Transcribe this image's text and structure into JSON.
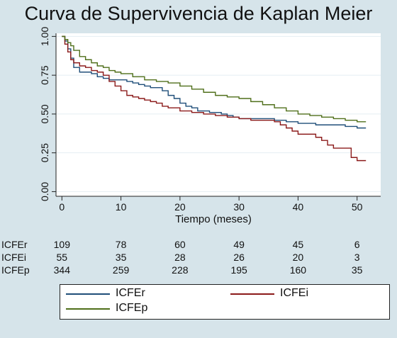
{
  "chart_data": {
    "type": "line",
    "title": "Curva de Supervivencia de Kaplan Meier",
    "xlabel": "Tiempo (meses)",
    "ylabel": "",
    "xlim": [
      -1,
      54
    ],
    "ylim": [
      -0.03,
      1.02
    ],
    "xticks": [
      0,
      10,
      20,
      30,
      40,
      50
    ],
    "yticks": [
      "0.00",
      "0.25",
      "0.50",
      "0.75",
      "1.00"
    ],
    "grid": true,
    "series": [
      {
        "name": "ICFEr",
        "color": "#1f4e79",
        "x": [
          0,
          0.5,
          1,
          1.5,
          2,
          3,
          4,
          5,
          6,
          7,
          8,
          9,
          10,
          11,
          12,
          13,
          14,
          15,
          16,
          17,
          18,
          19,
          20,
          21,
          22,
          23,
          24,
          25,
          26,
          27,
          28,
          29,
          30,
          33,
          36,
          38,
          40,
          43,
          46,
          48,
          50,
          51.5
        ],
        "y": [
          1.0,
          0.97,
          0.92,
          0.86,
          0.8,
          0.77,
          0.77,
          0.76,
          0.74,
          0.73,
          0.72,
          0.72,
          0.72,
          0.71,
          0.7,
          0.69,
          0.68,
          0.67,
          0.67,
          0.65,
          0.62,
          0.6,
          0.57,
          0.55,
          0.54,
          0.52,
          0.52,
          0.51,
          0.51,
          0.5,
          0.49,
          0.48,
          0.47,
          0.47,
          0.46,
          0.45,
          0.44,
          0.43,
          0.43,
          0.42,
          0.41,
          0.41
        ]
      },
      {
        "name": "ICFEi",
        "color": "#8b1a1a",
        "x": [
          0,
          0.5,
          1,
          1.5,
          2,
          3,
          4,
          5,
          6,
          7,
          8,
          9,
          10,
          11,
          12,
          13,
          14,
          15,
          16,
          17,
          18,
          20,
          22,
          24,
          26,
          28,
          30,
          32,
          34,
          36,
          37,
          38,
          39,
          40,
          42,
          43,
          44,
          45,
          46,
          47,
          48,
          49,
          50,
          51.5
        ],
        "y": [
          1.0,
          0.95,
          0.9,
          0.85,
          0.83,
          0.81,
          0.8,
          0.78,
          0.77,
          0.75,
          0.71,
          0.68,
          0.65,
          0.62,
          0.61,
          0.6,
          0.59,
          0.58,
          0.57,
          0.55,
          0.54,
          0.52,
          0.51,
          0.5,
          0.49,
          0.48,
          0.47,
          0.46,
          0.46,
          0.45,
          0.43,
          0.41,
          0.39,
          0.37,
          0.37,
          0.35,
          0.33,
          0.3,
          0.28,
          0.28,
          0.28,
          0.22,
          0.2,
          0.2
        ]
      },
      {
        "name": "ICFEp",
        "color": "#4f6f1a",
        "x": [
          0,
          0.5,
          1,
          1.5,
          2,
          3,
          4,
          5,
          6,
          7,
          8,
          9,
          10,
          12,
          14,
          16,
          18,
          20,
          22,
          24,
          26,
          28,
          30,
          32,
          34,
          36,
          38,
          40,
          42,
          44,
          46,
          48,
          50,
          51.5
        ],
        "y": [
          1.0,
          0.98,
          0.96,
          0.94,
          0.91,
          0.87,
          0.85,
          0.83,
          0.81,
          0.8,
          0.78,
          0.77,
          0.76,
          0.74,
          0.72,
          0.71,
          0.7,
          0.68,
          0.66,
          0.64,
          0.62,
          0.61,
          0.6,
          0.58,
          0.56,
          0.54,
          0.52,
          0.5,
          0.49,
          0.48,
          0.47,
          0.46,
          0.45,
          0.45
        ]
      }
    ],
    "risk_table": {
      "times": [
        0,
        10,
        20,
        30,
        40,
        50
      ],
      "rows": [
        {
          "label": "ICFEr",
          "values": [
            "109",
            "78",
            "60",
            "49",
            "45",
            "6"
          ]
        },
        {
          "label": "ICFEi",
          "values": [
            "55",
            "35",
            "28",
            "26",
            "20",
            "3"
          ]
        },
        {
          "label": "ICFEp",
          "values": [
            "344",
            "259",
            "228",
            "195",
            "160",
            "35"
          ]
        }
      ]
    },
    "legend": {
      "placement": "bottom",
      "items": [
        "ICFEr",
        "ICFEi",
        "ICFEp"
      ]
    },
    "colors": {
      "background": "#d6e4ea",
      "plot_background": "#ffffff",
      "grid": "#e4eef2"
    }
  }
}
